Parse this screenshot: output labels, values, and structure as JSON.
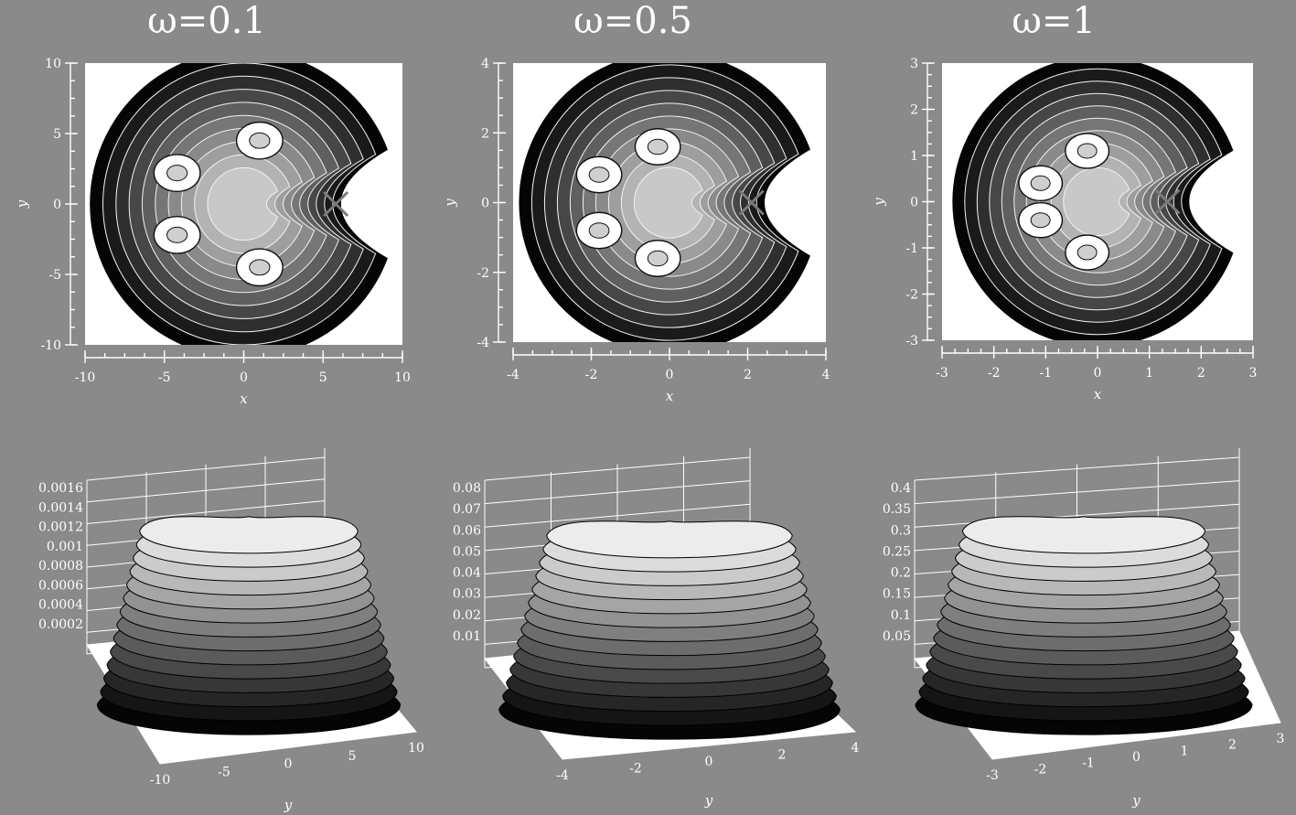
{
  "chart_data": [
    {
      "panel": "contour",
      "title": "ω=0.1",
      "xlabel": "x",
      "ylabel": "y",
      "xlim": [
        -10,
        10
      ],
      "ylim": [
        -10,
        10
      ],
      "xticks": [
        "-10",
        "-5",
        "0",
        "5",
        "10"
      ],
      "yticks": [
        "10",
        "5",
        "0",
        "-5",
        "-10"
      ],
      "marker": {
        "symbol": "×",
        "x": 5.8,
        "y": 0
      },
      "disk_radius": 9.7,
      "series": [
        {
          "x": -4.2,
          "y": 2.2
        },
        {
          "x": -4.2,
          "y": -2.2
        },
        {
          "x": 1.0,
          "y": 4.5
        },
        {
          "x": 1.0,
          "y": -4.5
        }
      ]
    },
    {
      "panel": "contour",
      "title": "ω=0.5",
      "xlabel": "x",
      "ylabel": "y",
      "xlim": [
        -4,
        4
      ],
      "ylim": [
        -4,
        4
      ],
      "xticks": [
        "-4",
        "-2",
        "0",
        "2",
        "4"
      ],
      "yticks": [
        "4",
        "2",
        "0",
        "-2",
        "-4"
      ],
      "marker": {
        "symbol": "×",
        "x": 2.1,
        "y": 0
      },
      "disk_radius": 3.85,
      "series": [
        {
          "x": -1.8,
          "y": 0.8
        },
        {
          "x": -1.8,
          "y": -0.8
        },
        {
          "x": -0.3,
          "y": 1.6
        },
        {
          "x": -0.3,
          "y": -1.6
        }
      ]
    },
    {
      "panel": "contour",
      "title": "ω=1",
      "xlabel": "x",
      "ylabel": "y",
      "xlim": [
        -3,
        3
      ],
      "ylim": [
        -3,
        3
      ],
      "xticks": [
        "-3",
        "-2",
        "-1",
        "0",
        "1",
        "2",
        "3"
      ],
      "yticks": [
        "3",
        "2",
        "1",
        "0",
        "-1",
        "-2",
        "-3"
      ],
      "marker": {
        "symbol": "×",
        "x": 1.35,
        "y": 0
      },
      "disk_radius": 2.8,
      "series": [
        {
          "x": -1.1,
          "y": 0.4
        },
        {
          "x": -1.1,
          "y": -0.4
        },
        {
          "x": -0.2,
          "y": 1.1
        },
        {
          "x": -0.2,
          "y": -1.1
        }
      ]
    },
    {
      "panel": "surface",
      "zticks": [
        "0.0016",
        "0.0014",
        "0.0012",
        "0.001",
        "0.0008",
        "0.0006",
        "0.0004",
        "0.0002"
      ],
      "yticks": [
        "-10",
        "-5",
        "0",
        "5",
        "10"
      ],
      "ylabel": "y",
      "zlim": [
        0,
        0.0016
      ]
    },
    {
      "panel": "surface",
      "zticks": [
        "0.08",
        "0.07",
        "0.06",
        "0.05",
        "0.04",
        "0.03",
        "0.02",
        "0.01"
      ],
      "yticks": [
        "-4",
        "-2",
        "0",
        "2",
        "4"
      ],
      "ylabel": "y",
      "zlim": [
        0,
        0.08
      ]
    },
    {
      "panel": "surface",
      "zticks": [
        "0.4",
        "0.35",
        "0.3",
        "0.25",
        "0.2",
        "0.15",
        "0.1",
        "0.05"
      ],
      "yticks": [
        "-3",
        "-2",
        "-1",
        "0",
        "1",
        "2",
        "3"
      ],
      "ylabel": "y",
      "zlim": [
        0,
        0.4
      ]
    }
  ]
}
